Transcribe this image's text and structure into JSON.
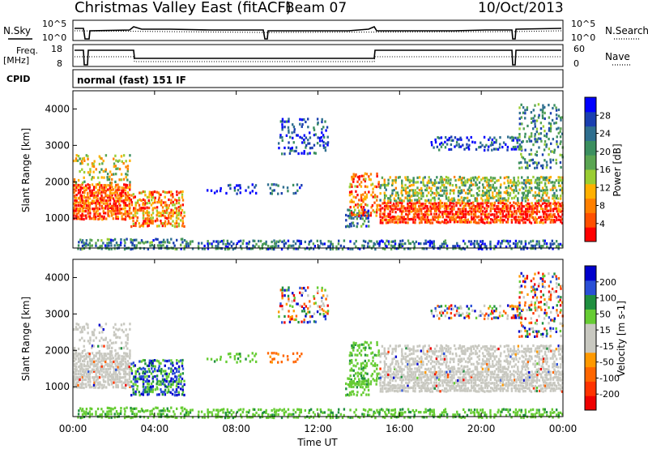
{
  "header": {
    "title": "Christmas Valley East (fitACF)",
    "beam": "Beam 07",
    "date": "10/Oct/2013"
  },
  "panels": {
    "nsky": {
      "label": "N.Sky",
      "ticks_left": [
        "10^5",
        "10^0"
      ],
      "ticks_right": [
        "10^5",
        "10^0"
      ],
      "right_label": "N.Search"
    },
    "freq": {
      "label_line1": "Freq.",
      "label_line2": "[MHz]",
      "ticks_left": [
        "18",
        "8"
      ],
      "ticks_right": [
        "60",
        "0"
      ],
      "right_label": "Nave"
    },
    "cpid": {
      "label": "CPID",
      "text": "normal (fast) 151 IF"
    }
  },
  "chart_data": [
    {
      "type": "heatmap",
      "name": "power",
      "title": "",
      "xlabel": "Time UT",
      "ylabel": "Slant Range [km]",
      "x_ticks": [
        "00:00",
        "04:00",
        "08:00",
        "12:00",
        "16:00",
        "20:00",
        "00:00"
      ],
      "xlim_hours": [
        0,
        24
      ],
      "ylim_km": [
        180,
        4500
      ],
      "y_ticks": [
        "1000",
        "2000",
        "3000",
        "4000"
      ],
      "colorbar": {
        "label": "Power [dB]",
        "tick_labels": [
          "4",
          "8",
          "12",
          "16",
          "20",
          "24",
          "28"
        ],
        "range": [
          0,
          32
        ],
        "colors": [
          "#0000ff",
          "#1a3fb0",
          "#2f6f8f",
          "#3b8f5f",
          "#5aa552",
          "#9acd32",
          "#ffb000",
          "#ff8000",
          "#ff5000",
          "#ff0000"
        ]
      }
    },
    {
      "type": "heatmap",
      "name": "velocity",
      "title": "",
      "xlabel": "Time UT",
      "ylabel": "Slant Range [km]",
      "x_ticks": [
        "00:00",
        "04:00",
        "08:00",
        "12:00",
        "16:00",
        "20:00",
        "00:00"
      ],
      "xlim_hours": [
        0,
        24
      ],
      "ylim_km": [
        180,
        4500
      ],
      "y_ticks": [
        "1000",
        "2000",
        "3000",
        "4000"
      ],
      "colorbar": {
        "label": "Velocity [m s-1]",
        "tick_labels": [
          "200",
          "100",
          "50",
          "15",
          "-15",
          "-50",
          "-100",
          "-200"
        ],
        "colors": [
          "#0000cc",
          "#2a4fd6",
          "#1f8f3f",
          "#66cc33",
          "#c8c8c0",
          "#c8c8c0",
          "#ff9900",
          "#ff6600",
          "#ff3300",
          "#ee0000"
        ]
      }
    }
  ],
  "time_axis_label": "Time UT"
}
